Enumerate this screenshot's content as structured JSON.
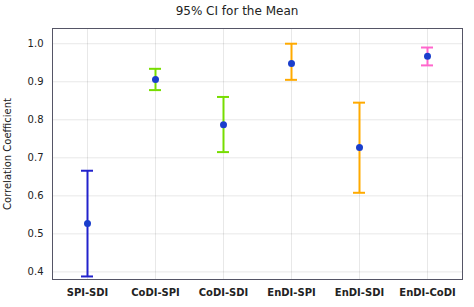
{
  "chart_data": {
    "type": "errorbar",
    "title": "95% CI for the Mean",
    "ylabel": "Correlation Coefficient",
    "categories": [
      "SPI-SDI",
      "CoDI-SPI",
      "CoDI-SDI",
      "EnDI-SPI",
      "EnDI-SDI",
      "EnDI-CoDI"
    ],
    "values": [
      0.527,
      0.906,
      0.787,
      0.948,
      0.727,
      0.967
    ],
    "ci_lower": [
      0.388,
      0.878,
      0.715,
      0.905,
      0.608,
      0.943
    ],
    "ci_upper": [
      0.666,
      0.934,
      0.86,
      1.0,
      0.845,
      0.99
    ],
    "colors": [
      "#2222cc",
      "#77dd00",
      "#77dd00",
      "#ffaa00",
      "#ffaa00",
      "#ff66cc"
    ],
    "color": "#1a3ecc",
    "ylim": [
      0.38,
      1.04
    ],
    "yticks": [
      0.4,
      0.5,
      0.6,
      0.7,
      0.8,
      0.9,
      {
        "value": 1.0,
        "label": "1.0"
      }
    ],
    "grid": true
  }
}
